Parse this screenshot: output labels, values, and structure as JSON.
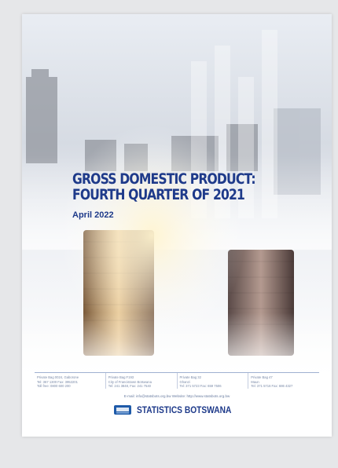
{
  "cover": {
    "title_lines": [
      "GROSS DOMESTIC PRODUCT:",
      "FOURTH QUARTER OF 2021"
    ],
    "date": "April 2022",
    "offices": [
      [
        "Private Bag 0024, Gaborone",
        "Tel: 367 1300 Fax: 3952201",
        "Toll free: 0800 600 200"
      ],
      [
        "Private Bag F193",
        "City of Francistown Botswana",
        "Tel: 241 3848, Fax: 241 7540"
      ],
      [
        "Private Bag 32",
        "Ghanzi",
        "Tel: 371 5723 Fax: 659 7506"
      ],
      [
        "Private Bag 47",
        "Maun",
        "Tel: 371 5716 Fax: 686 4327"
      ]
    ],
    "contact": "E-mail: info@statsbots.org.bw Website: http://www.statsbots.org.bw",
    "logo_text": "STATISTICS BOTSWANA"
  }
}
